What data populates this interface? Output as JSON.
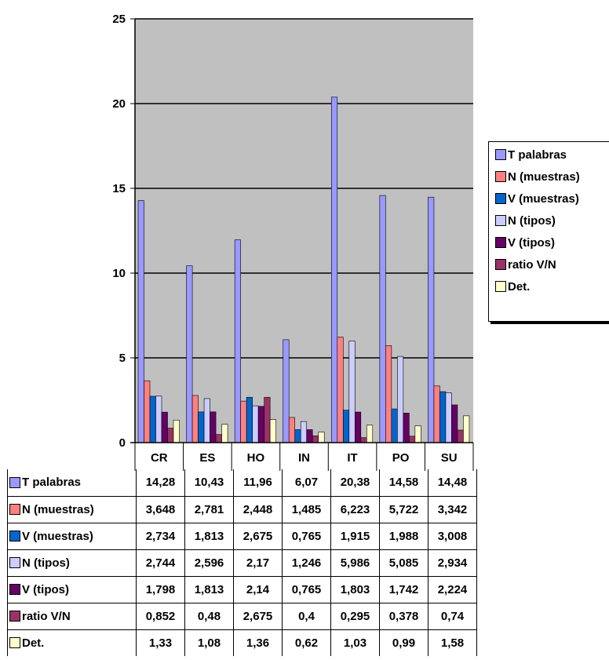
{
  "chart_data": {
    "type": "bar",
    "categories": [
      "CR",
      "ES",
      "HO",
      "IN",
      "IT",
      "PO",
      "SU"
    ],
    "ylim": [
      0,
      25
    ],
    "yticks": [
      "0",
      "5",
      "10",
      "15",
      "20",
      "25"
    ],
    "grid": true,
    "legend": "right",
    "series": [
      {
        "name": "T palabras",
        "color": "#9999ff",
        "values": [
          14.28,
          10.43,
          11.96,
          6.07,
          20.38,
          14.58,
          14.48
        ],
        "labels": [
          "14,28",
          "10,43",
          "11,96",
          "6,07",
          "20,38",
          "14,58",
          "14,48"
        ]
      },
      {
        "name": "N (muestras)",
        "color": "#ff8080",
        "values": [
          3.648,
          2.781,
          2.448,
          1.485,
          6.223,
          5.722,
          3.342
        ],
        "labels": [
          "3,648",
          "2,781",
          "2,448",
          "1,485",
          "6,223",
          "5,722",
          "3,342"
        ]
      },
      {
        "name": "V (muestras)",
        "color": "#0066cc",
        "values": [
          2.734,
          1.813,
          2.675,
          0.765,
          1.915,
          1.988,
          3.008
        ],
        "labels": [
          "2,734",
          "1,813",
          "2,675",
          "0,765",
          "1,915",
          "1,988",
          "3,008"
        ]
      },
      {
        "name": "N (tipos)",
        "color": "#ccccff",
        "values": [
          2.744,
          2.596,
          2.17,
          1.246,
          5.986,
          5.085,
          2.934
        ],
        "labels": [
          "2,744",
          "2,596",
          "2,17",
          "1,246",
          "5,986",
          "5,085",
          "2,934"
        ]
      },
      {
        "name": "V (tipos)",
        "color": "#660066",
        "values": [
          1.798,
          1.813,
          2.14,
          0.765,
          1.803,
          1.742,
          2.224
        ],
        "labels": [
          "1,798",
          "1,813",
          "2,14",
          "0,765",
          "1,803",
          "1,742",
          "2,224"
        ]
      },
      {
        "name": "ratio V/N",
        "color": "#993366",
        "values": [
          0.852,
          0.48,
          2.675,
          0.4,
          0.295,
          0.378,
          0.74
        ],
        "labels": [
          "0,852",
          "0,48",
          "2,675",
          "0,4",
          "0,295",
          "0,378",
          "0,74"
        ]
      },
      {
        "name": "Det.",
        "color": "#ffffcc",
        "values": [
          1.33,
          1.08,
          1.36,
          0.62,
          1.03,
          0.99,
          1.58
        ],
        "labels": [
          "1,33",
          "1,08",
          "1,36",
          "0,62",
          "1,03",
          "0,99",
          "1,58"
        ]
      }
    ],
    "plot_background": "#c0c0c0"
  }
}
